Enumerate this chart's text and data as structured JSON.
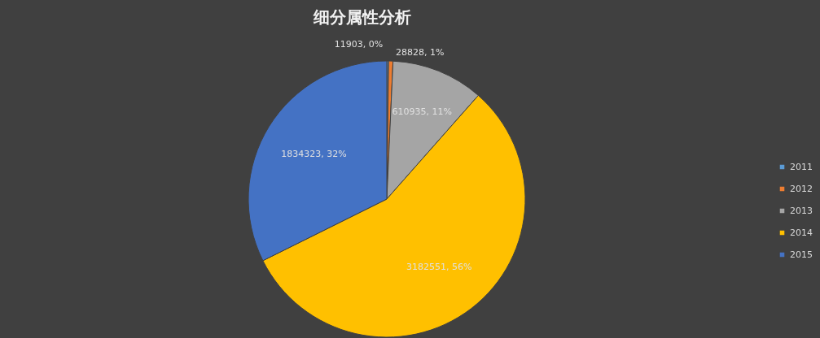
{
  "chart_data": {
    "type": "pie",
    "title": "细分属性分析",
    "categories": [
      "2011",
      "2012",
      "2013",
      "2014",
      "2015"
    ],
    "values": [
      11903,
      28828,
      610935,
      3182551,
      1834323
    ],
    "colors": [
      "#5b9bd5",
      "#ed7d31",
      "#a5a5a5",
      "#ffc000",
      "#4472c4"
    ],
    "value_labels": [
      "11903, 0%",
      "28828, 1%",
      "610935, 11%",
      "3182551, 56%",
      "1834323, 32%"
    ],
    "legend": "right"
  }
}
